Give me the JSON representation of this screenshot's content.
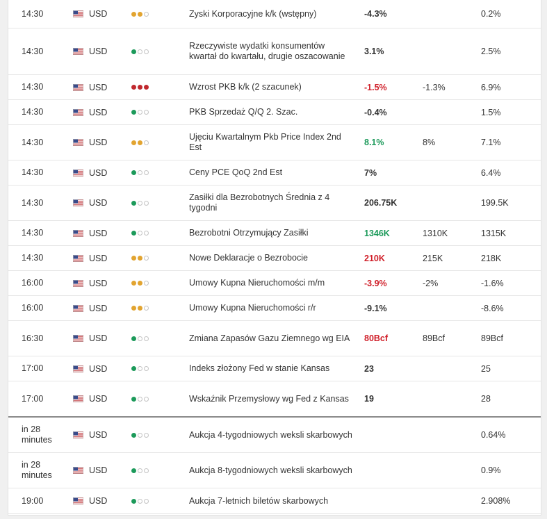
{
  "colors": {
    "low": "#1c9a5a",
    "medium": "#e2a430",
    "high": "#c0282e",
    "actual_red": "#d0202a",
    "actual_green": "#1c9a5a"
  },
  "rows": [
    {
      "time": "14:30",
      "currency": "USD",
      "impact": "medium",
      "event": "Zyski Korporacyjne k/k (wstępny)",
      "actual": "-4.3%",
      "actual_color": "black",
      "forecast": "",
      "previous": "0.2%"
    },
    {
      "time": "14:30",
      "currency": "USD",
      "impact": "low",
      "event": "Rzeczywiste wydatki konsumentów kwartał do kwartału, drugie oszacowanie",
      "actual": "3.1%",
      "actual_color": "black",
      "forecast": "",
      "previous": "2.5%"
    },
    {
      "time": "14:30",
      "currency": "USD",
      "impact": "high",
      "event": "Wzrost PKB k/k (2 szacunek)",
      "actual": "-1.5%",
      "actual_color": "red",
      "forecast": "-1.3%",
      "previous": "6.9%"
    },
    {
      "time": "14:30",
      "currency": "USD",
      "impact": "low",
      "event": "PKB Sprzedaż Q/Q 2. Szac.",
      "actual": "-0.4%",
      "actual_color": "black",
      "forecast": "",
      "previous": "1.5%"
    },
    {
      "time": "14:30",
      "currency": "USD",
      "impact": "medium",
      "event": "Ujęciu Kwartalnym Pkb Price Index 2nd Est",
      "actual": "8.1%",
      "actual_color": "green",
      "forecast": "8%",
      "previous": "7.1%"
    },
    {
      "time": "14:30",
      "currency": "USD",
      "impact": "low",
      "event": "Ceny PCE QoQ 2nd Est",
      "actual": "7%",
      "actual_color": "black",
      "forecast": "",
      "previous": "6.4%"
    },
    {
      "time": "14:30",
      "currency": "USD",
      "impact": "low",
      "event": "Zasiłki dla Bezrobotnych Średnia z 4 tygodni",
      "actual": "206.75K",
      "actual_color": "black",
      "forecast": "",
      "previous": "199.5K"
    },
    {
      "time": "14:30",
      "currency": "USD",
      "impact": "low",
      "event": "Bezrobotni Otrzymujący Zasiłki",
      "actual": "1346K",
      "actual_color": "green",
      "forecast": "1310K",
      "previous": "1315K"
    },
    {
      "time": "14:30",
      "currency": "USD",
      "impact": "medium",
      "event": "Nowe Deklaracje o Bezrobocie",
      "actual": "210K",
      "actual_color": "red",
      "forecast": "215K",
      "previous": "218K"
    },
    {
      "time": "16:00",
      "currency": "USD",
      "impact": "medium",
      "event": "Umowy Kupna Nieruchomości m/m",
      "actual": "-3.9%",
      "actual_color": "red",
      "forecast": "-2%",
      "previous": "-1.6%"
    },
    {
      "time": "16:00",
      "currency": "USD",
      "impact": "medium",
      "event": "Umowy Kupna Nieruchomości r/r",
      "actual": "-9.1%",
      "actual_color": "black",
      "forecast": "",
      "previous": "-8.6%"
    },
    {
      "time": "16:30",
      "currency": "USD",
      "impact": "low",
      "event": "Zmiana Zapasów Gazu Ziemnego wg EIA",
      "actual": "80Bcf",
      "actual_color": "red",
      "forecast": "89Bcf",
      "previous": "89Bcf"
    },
    {
      "time": "17:00",
      "currency": "USD",
      "impact": "low",
      "event": "Indeks złożony Fed w stanie Kansas",
      "actual": "23",
      "actual_color": "black",
      "forecast": "",
      "previous": "25"
    },
    {
      "time": "17:00",
      "currency": "USD",
      "impact": "low",
      "event": "Wskaźnik Przemysłowy wg Fed z Kansas",
      "actual": "19",
      "actual_color": "black",
      "forecast": "",
      "previous": "28"
    },
    {
      "time": "in 28 minutes",
      "currency": "USD",
      "impact": "low",
      "event": "Aukcja 4-tygodniowych weksli skarbowych",
      "actual": "",
      "actual_color": "black",
      "forecast": "",
      "previous": "0.64%"
    },
    {
      "time": "in 28 minutes",
      "currency": "USD",
      "impact": "low",
      "event": "Aukcja 8-tygodniowych weksli skarbowych",
      "actual": "",
      "actual_color": "black",
      "forecast": "",
      "previous": "0.9%"
    },
    {
      "time": "19:00",
      "currency": "USD",
      "impact": "low",
      "event": "Aukcja 7-letnich biletów skarbowych",
      "actual": "",
      "actual_color": "black",
      "forecast": "",
      "previous": "2.908%"
    }
  ]
}
